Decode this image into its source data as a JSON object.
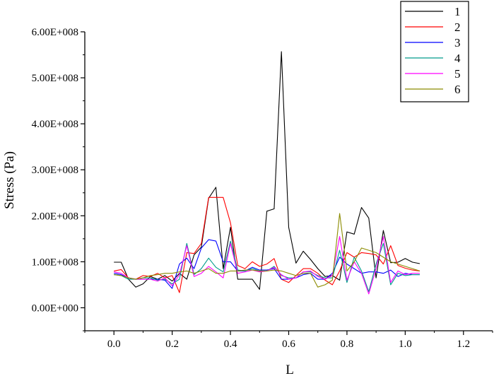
{
  "chart_data": {
    "type": "line",
    "xlabel": "L",
    "ylabel": "Stress (Pa)",
    "xlim": [
      -0.1,
      1.3
    ],
    "ylim": [
      -50000000,
      600000000
    ],
    "x_ticks": [
      0.0,
      0.2,
      0.4,
      0.6,
      0.8,
      1.0,
      1.2
    ],
    "x_tick_labels": [
      "0.0",
      "0.2",
      "0.4",
      "0.6",
      "0.8",
      "1.0",
      "1.2"
    ],
    "y_ticks": [
      0,
      100000000,
      200000000,
      300000000,
      400000000,
      500000000,
      600000000
    ],
    "y_tick_labels": [
      "0.00E+000",
      "1.00E+008",
      "2.00E+008",
      "3.00E+008",
      "4.00E+008",
      "5.00E+008",
      "6.00E+008"
    ],
    "grid": false,
    "legend_position": "top-right",
    "series": [
      {
        "name": "1",
        "color": "#000000",
        "x": [
          0.0,
          0.025,
          0.05,
          0.075,
          0.1,
          0.125,
          0.15,
          0.175,
          0.2,
          0.225,
          0.25,
          0.275,
          0.3,
          0.325,
          0.35,
          0.375,
          0.4,
          0.425,
          0.45,
          0.475,
          0.5,
          0.525,
          0.55,
          0.575,
          0.6,
          0.625,
          0.65,
          0.675,
          0.7,
          0.725,
          0.75,
          0.775,
          0.8,
          0.825,
          0.85,
          0.875,
          0.9,
          0.925,
          0.95,
          0.975,
          1.0,
          1.025,
          1.05
        ],
        "y": [
          99000000,
          99000000,
          62000000,
          45000000,
          52000000,
          68000000,
          62000000,
          70000000,
          58000000,
          75000000,
          62000000,
          115000000,
          132000000,
          238000000,
          262000000,
          85000000,
          175000000,
          62000000,
          62000000,
          62000000,
          40000000,
          210000000,
          215000000,
          557000000,
          175000000,
          97000000,
          123000000,
          105000000,
          85000000,
          68000000,
          70000000,
          60000000,
          165000000,
          160000000,
          218000000,
          195000000,
          65000000,
          168000000,
          98000000,
          99000000,
          107000000,
          99000000,
          96000000
        ]
      },
      {
        "name": "2",
        "color": "#ff0000",
        "x": [
          0.0,
          0.025,
          0.05,
          0.075,
          0.1,
          0.125,
          0.15,
          0.175,
          0.2,
          0.225,
          0.25,
          0.275,
          0.3,
          0.325,
          0.35,
          0.375,
          0.4,
          0.425,
          0.45,
          0.475,
          0.5,
          0.525,
          0.55,
          0.575,
          0.6,
          0.625,
          0.65,
          0.675,
          0.7,
          0.725,
          0.75,
          0.775,
          0.8,
          0.825,
          0.85,
          0.875,
          0.9,
          0.925,
          0.95,
          0.975,
          1.0,
          1.025,
          1.05
        ],
        "y": [
          80000000,
          83000000,
          65000000,
          62000000,
          70000000,
          68000000,
          75000000,
          65000000,
          70000000,
          33000000,
          120000000,
          118000000,
          140000000,
          240000000,
          240000000,
          240000000,
          185000000,
          92000000,
          85000000,
          100000000,
          90000000,
          95000000,
          107000000,
          62000000,
          55000000,
          70000000,
          85000000,
          85000000,
          75000000,
          60000000,
          50000000,
          80000000,
          120000000,
          110000000,
          120000000,
          118000000,
          115000000,
          95000000,
          135000000,
          92000000,
          86000000,
          82000000,
          80000000
        ]
      },
      {
        "name": "3",
        "color": "#0000ff",
        "x": [
          0.0,
          0.025,
          0.05,
          0.075,
          0.1,
          0.125,
          0.15,
          0.175,
          0.2,
          0.225,
          0.25,
          0.275,
          0.3,
          0.325,
          0.35,
          0.375,
          0.4,
          0.425,
          0.45,
          0.475,
          0.5,
          0.525,
          0.55,
          0.575,
          0.6,
          0.625,
          0.65,
          0.675,
          0.7,
          0.725,
          0.75,
          0.775,
          0.8,
          0.825,
          0.85,
          0.875,
          0.9,
          0.925,
          0.95,
          0.975,
          1.0,
          1.025,
          1.05
        ],
        "y": [
          75000000,
          72000000,
          65000000,
          62000000,
          62000000,
          62000000,
          62000000,
          60000000,
          42000000,
          95000000,
          108000000,
          85000000,
          130000000,
          148000000,
          145000000,
          100000000,
          100000000,
          80000000,
          80000000,
          88000000,
          82000000,
          82000000,
          85000000,
          62000000,
          62000000,
          65000000,
          72000000,
          75000000,
          62000000,
          62000000,
          75000000,
          110000000,
          95000000,
          85000000,
          75000000,
          78000000,
          78000000,
          75000000,
          82000000,
          68000000,
          75000000,
          72000000,
          72000000
        ]
      },
      {
        "name": "4",
        "color": "#009b8c",
        "x": [
          0.0,
          0.025,
          0.05,
          0.075,
          0.1,
          0.125,
          0.15,
          0.175,
          0.2,
          0.225,
          0.25,
          0.275,
          0.3,
          0.325,
          0.35,
          0.375,
          0.4,
          0.425,
          0.45,
          0.475,
          0.5,
          0.525,
          0.55,
          0.575,
          0.6,
          0.625,
          0.65,
          0.675,
          0.7,
          0.725,
          0.75,
          0.775,
          0.8,
          0.825,
          0.85,
          0.875,
          0.9,
          0.925,
          0.95,
          0.975,
          1.0,
          1.025,
          1.05
        ],
        "y": [
          72000000,
          70000000,
          62000000,
          62000000,
          65000000,
          65000000,
          60000000,
          62000000,
          52000000,
          62000000,
          140000000,
          72000000,
          85000000,
          108000000,
          88000000,
          78000000,
          145000000,
          82000000,
          80000000,
          85000000,
          80000000,
          80000000,
          90000000,
          70000000,
          65000000,
          65000000,
          78000000,
          78000000,
          70000000,
          65000000,
          65000000,
          125000000,
          55000000,
          110000000,
          80000000,
          35000000,
          95000000,
          140000000,
          50000000,
          75000000,
          70000000,
          72000000,
          72000000
        ]
      },
      {
        "name": "5",
        "color": "#ff00ff",
        "x": [
          0.0,
          0.025,
          0.05,
          0.075,
          0.1,
          0.125,
          0.15,
          0.175,
          0.2,
          0.225,
          0.25,
          0.275,
          0.3,
          0.325,
          0.35,
          0.375,
          0.4,
          0.425,
          0.45,
          0.475,
          0.5,
          0.525,
          0.55,
          0.575,
          0.6,
          0.625,
          0.65,
          0.675,
          0.7,
          0.725,
          0.75,
          0.775,
          0.8,
          0.825,
          0.85,
          0.875,
          0.9,
          0.925,
          0.95,
          0.975,
          1.0,
          1.025,
          1.05
        ],
        "y": [
          78000000,
          75000000,
          65000000,
          62000000,
          62000000,
          62000000,
          58000000,
          65000000,
          48000000,
          72000000,
          135000000,
          68000000,
          75000000,
          90000000,
          78000000,
          65000000,
          140000000,
          75000000,
          78000000,
          82000000,
          78000000,
          80000000,
          88000000,
          72000000,
          62000000,
          65000000,
          78000000,
          80000000,
          68000000,
          62000000,
          70000000,
          155000000,
          60000000,
          100000000,
          75000000,
          30000000,
          85000000,
          155000000,
          55000000,
          80000000,
          72000000,
          75000000,
          75000000
        ]
      },
      {
        "name": "6",
        "color": "#8b8b00",
        "x": [
          0.0,
          0.025,
          0.05,
          0.075,
          0.1,
          0.125,
          0.15,
          0.175,
          0.2,
          0.225,
          0.25,
          0.275,
          0.3,
          0.325,
          0.35,
          0.375,
          0.4,
          0.425,
          0.45,
          0.475,
          0.5,
          0.525,
          0.55,
          0.575,
          0.6,
          0.625,
          0.65,
          0.675,
          0.7,
          0.725,
          0.75,
          0.775,
          0.8,
          0.825,
          0.85,
          0.875,
          0.9,
          0.925,
          0.95,
          0.975,
          1.0,
          1.025,
          1.05
        ],
        "y": [
          72000000,
          70000000,
          65000000,
          62000000,
          65000000,
          70000000,
          72000000,
          75000000,
          75000000,
          78000000,
          80000000,
          75000000,
          80000000,
          85000000,
          75000000,
          75000000,
          80000000,
          80000000,
          82000000,
          82000000,
          80000000,
          80000000,
          82000000,
          80000000,
          75000000,
          70000000,
          75000000,
          75000000,
          45000000,
          50000000,
          60000000,
          205000000,
          80000000,
          100000000,
          130000000,
          125000000,
          120000000,
          110000000,
          100000000,
          95000000,
          90000000,
          85000000,
          80000000
        ]
      }
    ]
  }
}
